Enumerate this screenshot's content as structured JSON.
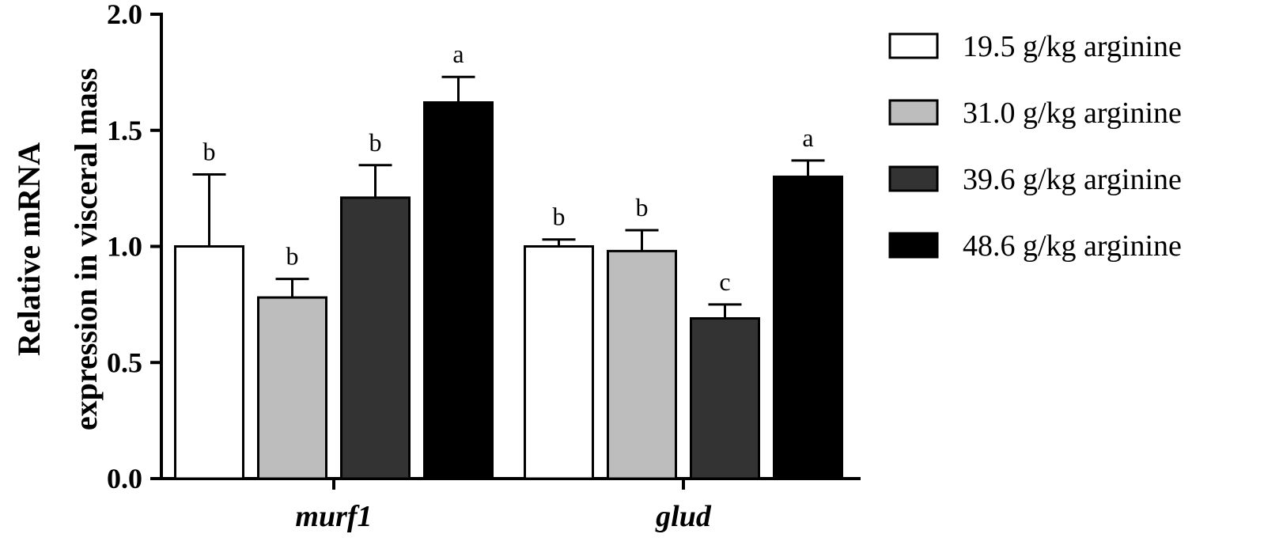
{
  "chart_data": {
    "type": "bar",
    "title": "",
    "ylabel": [
      "Relative mRNA",
      "expression in visceral mass"
    ],
    "xlabel": "",
    "ylim": [
      0,
      2.0
    ],
    "yticks": [
      0.0,
      0.5,
      1.0,
      1.5,
      2.0
    ],
    "ytick_labels": [
      "0.0",
      "0.5",
      "1.0",
      "1.5",
      "2.0"
    ],
    "categories": [
      "murf1",
      "glud"
    ],
    "legend_position": "right",
    "series": [
      {
        "name": "19.5 g/kg arginine",
        "color": "#ffffff",
        "values": [
          1.0,
          1.0
        ],
        "errors": [
          0.31,
          0.03
        ],
        "letters": [
          "b",
          "b"
        ]
      },
      {
        "name": "31.0 g/kg arginine",
        "color": "#bdbdbd",
        "values": [
          0.78,
          0.98
        ],
        "errors": [
          0.08,
          0.09
        ],
        "letters": [
          "b",
          "b"
        ]
      },
      {
        "name": "39.6 g/kg arginine",
        "color": "#333333",
        "values": [
          1.21,
          0.69
        ],
        "errors": [
          0.14,
          0.06
        ],
        "letters": [
          "b",
          "c"
        ]
      },
      {
        "name": "48.6 g/kg arginine",
        "color": "#000000",
        "values": [
          1.62,
          1.3
        ],
        "errors": [
          0.11,
          0.07
        ],
        "letters": [
          "a",
          "a"
        ]
      }
    ]
  }
}
